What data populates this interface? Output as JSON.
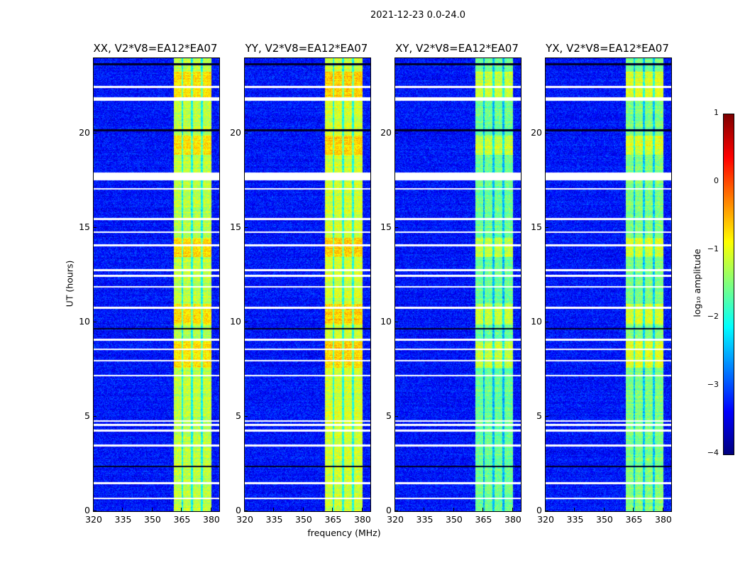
{
  "chart_data": {
    "type": "heatmap",
    "title": "2021-12-23 0.0-24.0",
    "xlabel": "frequency (MHz)",
    "ylabel": "UT (hours)",
    "xlim": [
      320,
      384
    ],
    "ylim": [
      0,
      24
    ],
    "xticks": [
      "320",
      "335",
      "350",
      "365",
      "380"
    ],
    "xtick_values": [
      320,
      335,
      350,
      365,
      380
    ],
    "yticks": [
      "0",
      "5",
      "10",
      "15",
      "20"
    ],
    "ytick_values": [
      0,
      5,
      10,
      15,
      20
    ],
    "panels": [
      {
        "title": "XX, V2*V8=EA12*EA07",
        "band_level": -1.2
      },
      {
        "title": "YY, V2*V8=EA12*EA07",
        "band_level": -1.1
      },
      {
        "title": "XY, V2*V8=EA12*EA07",
        "band_level": -1.6
      },
      {
        "title": "YX, V2*V8=EA12*EA07",
        "band_level": -1.5
      }
    ],
    "background_level": -3.3,
    "band_mhz": [
      360.5,
      380
    ],
    "band_gaps_mhz": [
      365,
      370,
      375
    ],
    "bright_hours": [
      [
        9.9,
        11.0
      ],
      [
        18.9,
        19.9
      ],
      [
        21.8,
        23.3
      ],
      [
        7.6,
        9.0
      ],
      [
        13.5,
        14.5
      ]
    ],
    "flagged_hours_white": [
      0.7,
      1.5,
      3.5,
      4.3,
      4.6,
      4.8,
      7.2,
      8.0,
      8.6,
      9.1,
      10.8,
      11.9,
      12.5,
      12.8,
      14.1,
      14.8,
      15.5,
      17.1,
      17.6,
      17.7,
      17.8,
      17.9,
      21.8,
      21.9,
      22.5
    ],
    "flagged_hours_black": [
      2.4,
      9.1,
      9.7,
      20.2,
      23.7
    ],
    "colorbar": {
      "label": "log₁₀ amplitude",
      "clim": [
        -4,
        1
      ],
      "ticks": [
        "1",
        "0",
        "−1",
        "−2",
        "−3",
        "−4"
      ],
      "tick_values": [
        1,
        0,
        -1,
        -2,
        -3,
        -4
      ],
      "colormap": "jet"
    }
  }
}
